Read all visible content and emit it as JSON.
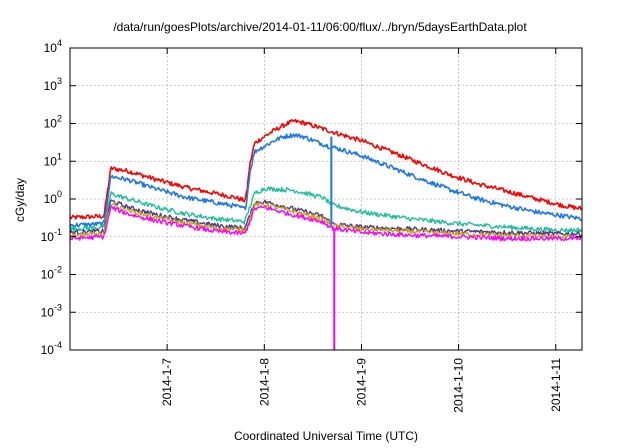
{
  "chart_data": {
    "type": "line",
    "title": "/data/run/goesPlots/archive/2014-01-11/06:00/flux/../bryn/5daysEarthData.plot",
    "xlabel": "Coordinated Universal Time (UTC)",
    "ylabel": "cGy/day",
    "x_unit": "day of January 2014 (UTC)",
    "xlim": [
      6.0,
      11.27
    ],
    "ylim": [
      0.0001,
      10000
    ],
    "yscale": "log",
    "x_ticks": [
      {
        "x": 7,
        "label": "2014-1-7"
      },
      {
        "x": 8,
        "label": "2014-1-8"
      },
      {
        "x": 9,
        "label": "2014-1-9"
      },
      {
        "x": 10,
        "label": "2014-1-10"
      },
      {
        "x": 11,
        "label": "2014-1-11"
      }
    ],
    "y_ticks": [
      {
        "value": 0.0001,
        "base": "10",
        "exp": "-4"
      },
      {
        "value": 0.001,
        "base": "10",
        "exp": "-3"
      },
      {
        "value": 0.01,
        "base": "10",
        "exp": "-2"
      },
      {
        "value": 0.1,
        "base": "10",
        "exp": "-1"
      },
      {
        "value": 1,
        "base": "10",
        "exp": "0"
      },
      {
        "value": 10,
        "base": "10",
        "exp": "1"
      },
      {
        "value": 100,
        "base": "10",
        "exp": "2"
      },
      {
        "value": 1000,
        "base": "10",
        "exp": "3"
      },
      {
        "value": 10000,
        "base": "10",
        "exp": "4"
      }
    ],
    "grid": true,
    "legend": "none",
    "series": [
      {
        "color": "#ff0000",
        "width": 1.6,
        "x": [
          6.0,
          6.35,
          6.42,
          6.6,
          6.9,
          7.2,
          7.5,
          7.7,
          7.8,
          7.82,
          7.85,
          7.9,
          8.0,
          8.1,
          8.2,
          8.3,
          8.4,
          8.55,
          8.7,
          9.0,
          9.3,
          9.6,
          9.9,
          10.2,
          10.5,
          10.8,
          11.1,
          11.27
        ],
        "y": [
          0.32,
          0.35,
          6.5,
          5.5,
          3.2,
          2.0,
          1.4,
          1.1,
          0.9,
          1.5,
          8,
          30,
          45,
          65,
          90,
          115,
          105,
          80,
          60,
          35,
          18,
          9,
          4.5,
          2.5,
          1.6,
          1.0,
          0.65,
          0.55
        ]
      },
      {
        "color": "#1e78e6",
        "width": 1.6,
        "x": [
          6.0,
          6.35,
          6.42,
          6.6,
          6.9,
          7.2,
          7.5,
          7.7,
          7.8,
          7.82,
          7.85,
          7.9,
          8.0,
          8.1,
          8.2,
          8.3,
          8.4,
          8.55,
          8.66,
          8.7,
          9.0,
          9.3,
          9.6,
          9.9,
          10.2,
          10.5,
          10.8,
          11.1,
          11.27
        ],
        "y": [
          0.2,
          0.22,
          4.0,
          3.2,
          1.8,
          1.1,
          0.8,
          0.65,
          0.55,
          0.9,
          5,
          18,
          25,
          35,
          45,
          50,
          45,
          32,
          25,
          24,
          14,
          7,
          3.5,
          1.8,
          1.0,
          0.65,
          0.45,
          0.35,
          0.3
        ]
      },
      {
        "color": "#1dbf9a",
        "width": 1.4,
        "x": [
          6.0,
          6.35,
          6.42,
          6.6,
          6.9,
          7.2,
          7.5,
          7.8,
          7.85,
          7.9,
          8.0,
          8.3,
          8.6,
          8.7,
          9.0,
          9.5,
          10.0,
          10.5,
          11.0,
          11.27
        ],
        "y": [
          0.16,
          0.18,
          1.4,
          1.0,
          0.6,
          0.4,
          0.3,
          0.25,
          0.6,
          1.4,
          1.9,
          1.7,
          1.1,
          0.7,
          0.45,
          0.3,
          0.22,
          0.18,
          0.15,
          0.15
        ]
      },
      {
        "color": "#4b3b8f",
        "width": 1.4,
        "x": [
          6.0,
          6.35,
          6.42,
          6.6,
          6.9,
          7.2,
          7.5,
          7.8,
          7.85,
          7.9,
          8.0,
          8.3,
          8.6,
          8.7,
          9.0,
          9.5,
          10.0,
          10.5,
          11.0,
          11.27
        ],
        "y": [
          0.13,
          0.14,
          0.9,
          0.6,
          0.38,
          0.27,
          0.2,
          0.17,
          0.35,
          0.8,
          0.85,
          0.55,
          0.35,
          0.22,
          0.18,
          0.16,
          0.14,
          0.13,
          0.12,
          0.12
        ]
      },
      {
        "color": "#c8a000",
        "width": 1.2,
        "x": [
          6.0,
          6.35,
          6.42,
          6.6,
          6.9,
          7.2,
          7.5,
          7.8,
          7.85,
          7.9,
          8.0,
          8.3,
          8.6,
          8.7,
          9.0,
          9.5,
          10.0,
          10.5,
          11.0,
          11.27
        ],
        "y": [
          0.11,
          0.12,
          0.75,
          0.5,
          0.32,
          0.23,
          0.17,
          0.15,
          0.3,
          0.7,
          0.72,
          0.47,
          0.3,
          0.2,
          0.16,
          0.14,
          0.12,
          0.11,
          0.1,
          0.1
        ]
      },
      {
        "color": "#ff00ff",
        "width": 1.4,
        "x": [
          6.0,
          6.35,
          6.42,
          6.6,
          6.9,
          7.2,
          7.5,
          7.8,
          7.85,
          7.9,
          8.0,
          8.3,
          8.6,
          8.7,
          9.0,
          9.5,
          10.0,
          10.5,
          11.0,
          11.27
        ],
        "y": [
          0.09,
          0.1,
          0.6,
          0.4,
          0.26,
          0.19,
          0.14,
          0.12,
          0.25,
          0.55,
          0.6,
          0.38,
          0.25,
          0.17,
          0.13,
          0.11,
          0.1,
          0.09,
          0.09,
          0.09
        ]
      }
    ],
    "vertical_lines": [
      {
        "color": "#ff00ff",
        "x": 8.72,
        "y_top": 0.15,
        "y_bottom": 0.0001
      },
      {
        "color": "#1e78e6",
        "x": 8.69,
        "y_top": 45,
        "y_bottom": 0.2
      }
    ]
  }
}
